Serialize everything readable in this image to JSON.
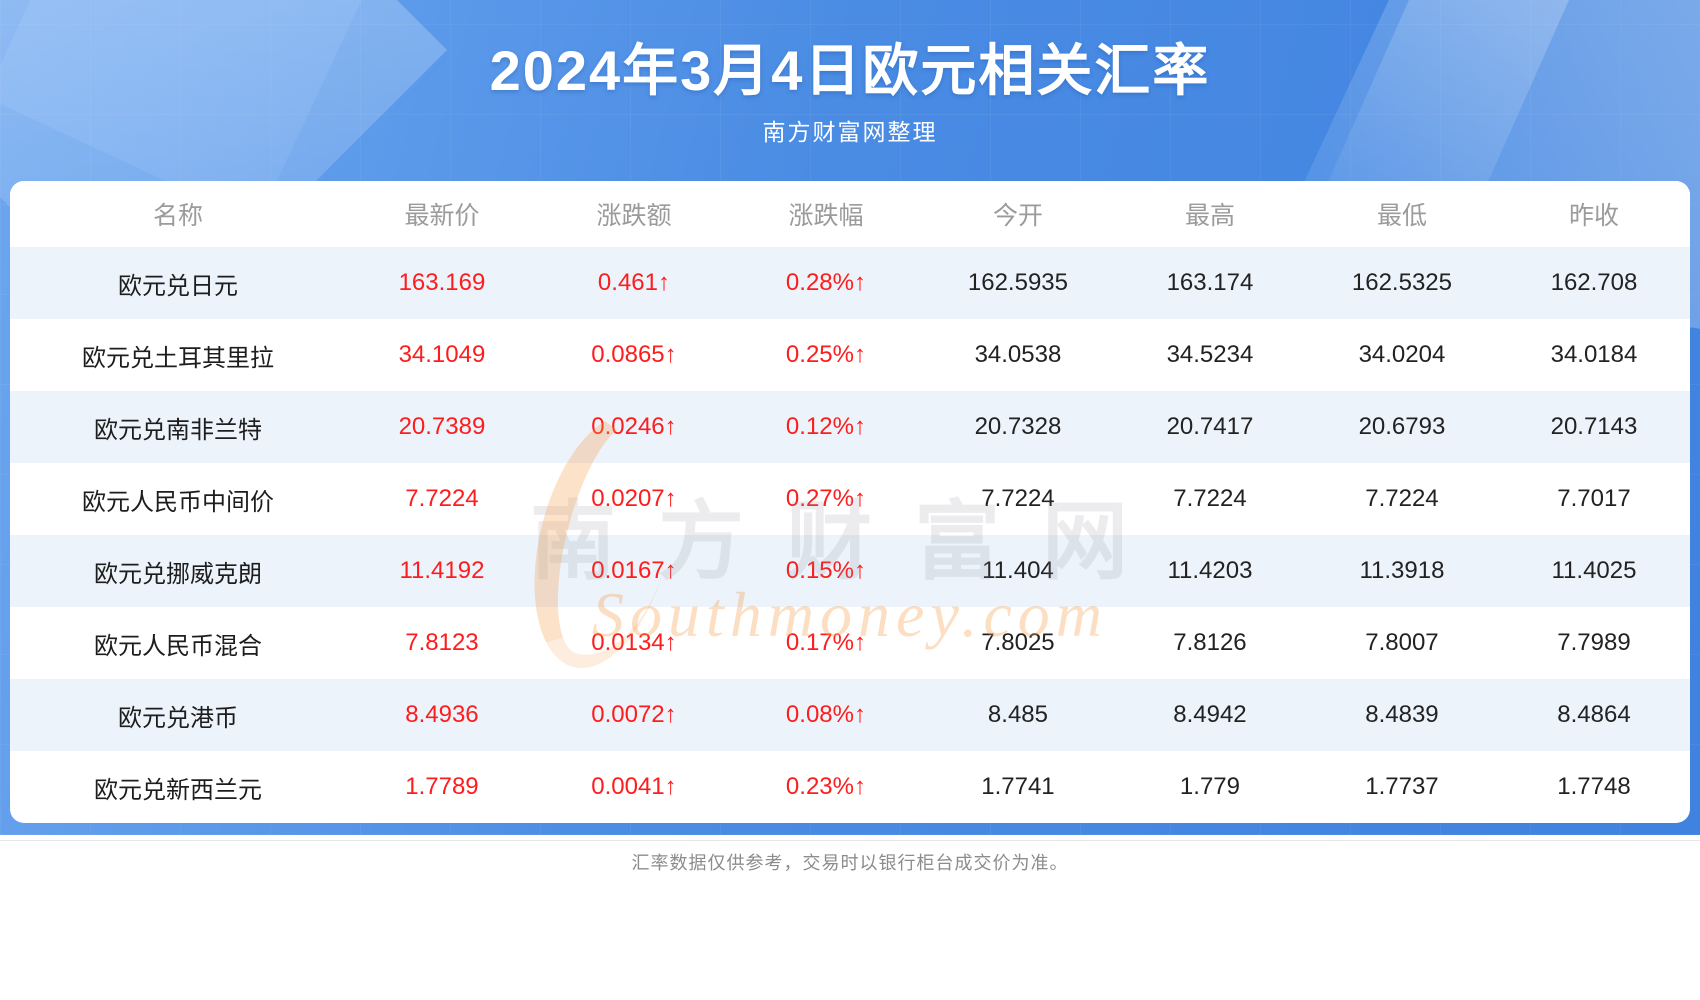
{
  "header": {
    "title": "2024年3月4日欧元相关汇率",
    "subtitle": "南方财富网整理"
  },
  "table": {
    "columns": [
      "名称",
      "最新价",
      "涨跌额",
      "涨跌幅",
      "今开",
      "最高",
      "最低",
      "昨收"
    ],
    "rows": [
      {
        "name": "欧元兑日元",
        "latest": "163.169",
        "change": "0.461↑",
        "change_pct": "0.28%↑",
        "open": "162.5935",
        "high": "163.174",
        "low": "162.5325",
        "prev_close": "162.708"
      },
      {
        "name": "欧元兑土耳其里拉",
        "latest": "34.1049",
        "change": "0.0865↑",
        "change_pct": "0.25%↑",
        "open": "34.0538",
        "high": "34.5234",
        "low": "34.0204",
        "prev_close": "34.0184"
      },
      {
        "name": "欧元兑南非兰特",
        "latest": "20.7389",
        "change": "0.0246↑",
        "change_pct": "0.12%↑",
        "open": "20.7328",
        "high": "20.7417",
        "low": "20.6793",
        "prev_close": "20.7143"
      },
      {
        "name": "欧元人民币中间价",
        "latest": "7.7224",
        "change": "0.0207↑",
        "change_pct": "0.27%↑",
        "open": "7.7224",
        "high": "7.7224",
        "low": "7.7224",
        "prev_close": "7.7017"
      },
      {
        "name": "欧元兑挪威克朗",
        "latest": "11.4192",
        "change": "0.0167↑",
        "change_pct": "0.15%↑",
        "open": "11.404",
        "high": "11.4203",
        "low": "11.3918",
        "prev_close": "11.4025"
      },
      {
        "name": "欧元人民币混合",
        "latest": "7.8123",
        "change": "0.0134↑",
        "change_pct": "0.17%↑",
        "open": "7.8025",
        "high": "7.8126",
        "low": "7.8007",
        "prev_close": "7.7989"
      },
      {
        "name": "欧元兑港币",
        "latest": "8.4936",
        "change": "0.0072↑",
        "change_pct": "0.08%↑",
        "open": "8.485",
        "high": "8.4942",
        "low": "8.4839",
        "prev_close": "8.4864"
      },
      {
        "name": "欧元兑新西兰元",
        "latest": "1.7789",
        "change": "0.0041↑",
        "change_pct": "0.23%↑",
        "open": "1.7741",
        "high": "1.779",
        "low": "1.7737",
        "prev_close": "1.7748"
      }
    ]
  },
  "watermark": {
    "cn": "南方财富网",
    "en": "Southmoney.com"
  },
  "footer": {
    "note": "汇率数据仅供参考，交易时以银行柜台成交价为准。"
  },
  "colors": {
    "hero_blue": "#4a8ce4",
    "accent_red": "#fe1c1c",
    "row_alt": "#ecf3fb",
    "header_text": "#9b9b9b",
    "body_text": "#222222",
    "footer_text": "#8c8c8c",
    "watermark_orange": "#f6a04d"
  }
}
